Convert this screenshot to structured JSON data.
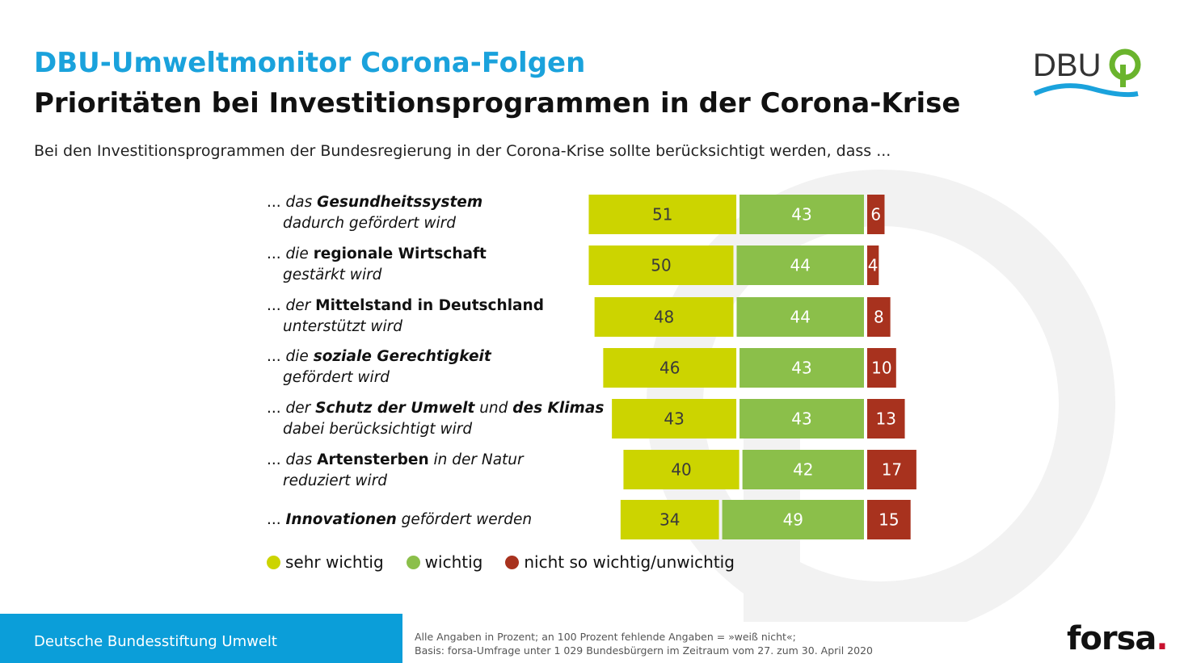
{
  "header": {
    "title": "DBU-Umweltmonitor Corona-Folgen",
    "headline": "Prioritäten bei Investitionsprogrammen in der Corona-Krise",
    "question": "Bei den Investitionsprogrammen der Bundesregierung in der Corona-Krise sollte berücksichtigt werden, dass ..."
  },
  "logo": {
    "text": "DBU"
  },
  "rows": [
    {
      "p1": "... das ",
      "b1": "Gesundheitssystem",
      "p2": "",
      "line2": "dadurch gefördert wird"
    },
    {
      "p1": "... die ",
      "b1": "regionale Wirtschaft",
      "p2": "",
      "line2": "gestärkt wird"
    },
    {
      "p1": "... der ",
      "b1": "Mittelstand in Deutschland",
      "p2": "",
      "line2": "unterstützt wird"
    },
    {
      "p1": "... die ",
      "b1": "soziale Gerechtigkeit",
      "p2": "",
      "line2": "gefördert wird"
    },
    {
      "p1": "... der ",
      "b1": "Schutz der Umwelt",
      "p2": " und ",
      "b2": "des Klimas",
      "line2": "dabei berücksichtigt wird"
    },
    {
      "p1": "... das ",
      "b1": "Artensterben",
      "p2": " in der Natur",
      "line2": "reduziert wird"
    },
    {
      "p1": "... ",
      "b1": "Innovationen",
      "p2": " gefördert werden",
      "line2": ""
    }
  ],
  "chart_data": {
    "type": "bar",
    "orientation": "horizontal-stacked-diverging",
    "unit": "%",
    "categories": [
      "das Gesundheitssystem dadurch gefördert wird",
      "die regionale Wirtschaft gestärkt wird",
      "der Mittelstand in Deutschland unterstützt wird",
      "die soziale Gerechtigkeit gefördert wird",
      "der Schutz der Umwelt und des Klimas dabei berücksichtigt wird",
      "das Artensterben in der Natur reduziert wird",
      "Innovationen gefördert werden"
    ],
    "series": [
      {
        "name": "sehr wichtig",
        "color": "#ccd400",
        "values": [
          51,
          50,
          48,
          46,
          43,
          40,
          34
        ]
      },
      {
        "name": "wichtig",
        "color": "#8bbf4a",
        "values": [
          43,
          44,
          44,
          43,
          43,
          42,
          49
        ]
      },
      {
        "name": "nicht so wichtig/unwichtig",
        "color": "#a8321e",
        "values": [
          6,
          4,
          8,
          10,
          13,
          17,
          15
        ]
      }
    ],
    "legend_position": "bottom-left",
    "grid": false
  },
  "footer": {
    "org": "Deutsche Bundesstiftung Umwelt",
    "note1": "Alle Angaben in Prozent; an 100 Prozent fehlende Angaben = »weiß nicht«;",
    "note2": "Basis: forsa-Umfrage unter 1 029 Bundesbürgern im Zeitraum vom 27. zum 30. April 2020",
    "brand": "forsa",
    "brand_dot": "."
  }
}
